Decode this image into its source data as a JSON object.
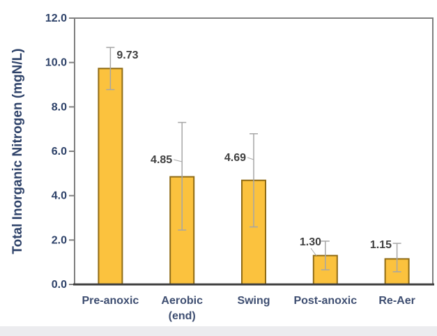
{
  "chart_data": {
    "type": "bar",
    "title": "",
    "xlabel": "",
    "ylabel": "Total Inorganic Nitrogen (mgN/L)",
    "ylim": [
      0,
      12
    ],
    "ytick_labels": [
      "0.0",
      "2.0",
      "4.0",
      "6.0",
      "8.0",
      "10.0",
      "12.0"
    ],
    "ytick_values": [
      0,
      2,
      4,
      6,
      8,
      10,
      12
    ],
    "categories": [
      "Pre-anoxic",
      "Aerobic",
      "Swing",
      "Post-anoxic",
      "Re-Aer"
    ],
    "category_sublabels": [
      "",
      "(end)",
      "",
      "",
      ""
    ],
    "values": [
      9.73,
      4.85,
      4.69,
      1.3,
      1.15
    ],
    "value_labels": [
      "9.73",
      "4.85",
      "4.69",
      "1.30",
      "1.15"
    ],
    "error_plus": [
      0.95,
      2.45,
      2.1,
      0.65,
      0.7
    ],
    "error_minus": [
      0.95,
      2.4,
      2.1,
      0.64,
      0.58
    ],
    "grid": false,
    "legend": null,
    "colors": {
      "bar_fill": "#FBC23E",
      "bar_border": "#8F6B15",
      "error_bar": "#A6A6A6",
      "value_label": "#3F3F3F",
      "y_axis_text": "#2E4269",
      "x_axis_text": "#3E4E71",
      "frame": "#7F7F7F",
      "baseline": "#3F3F3F",
      "background": "#FFFFFF",
      "bottom_strip": "#ECECEF"
    }
  }
}
